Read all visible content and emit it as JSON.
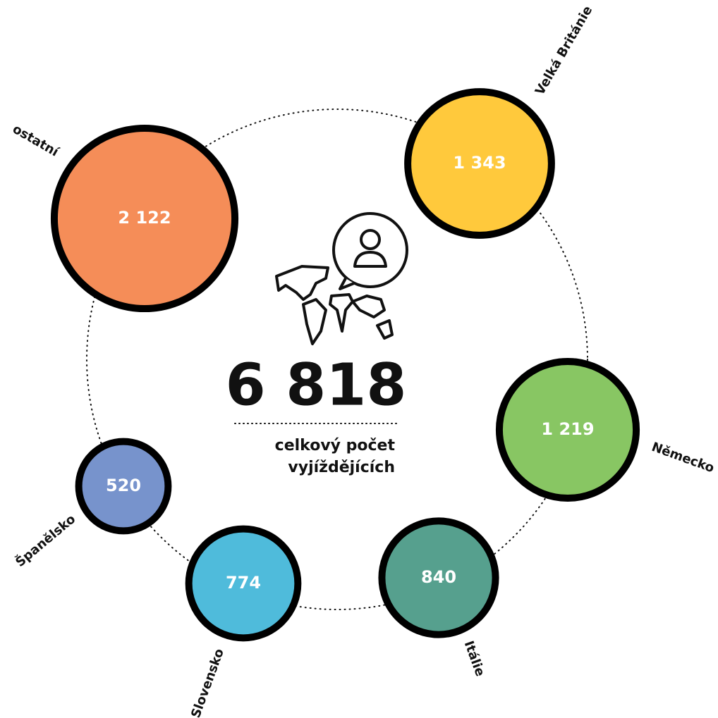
{
  "chart_data": {
    "type": "bubble",
    "categories": [
      "ostatní",
      "Velká Británie",
      "Německo",
      "Itálie",
      "Slovensko",
      "Španělsko"
    ],
    "values": [
      2122,
      1343,
      1219,
      840,
      774,
      520
    ],
    "value_labels": [
      "2 122",
      "1 343",
      "1 219",
      "840",
      "774",
      "520"
    ],
    "colors": [
      "#f58d58",
      "#ffc93c",
      "#88c663",
      "#56a08e",
      "#4fbbdb",
      "#7793cc"
    ],
    "total": {
      "value": 6818,
      "label": "6 818"
    },
    "total_caption": [
      "celkový počet",
      "vyjíždějících"
    ]
  }
}
